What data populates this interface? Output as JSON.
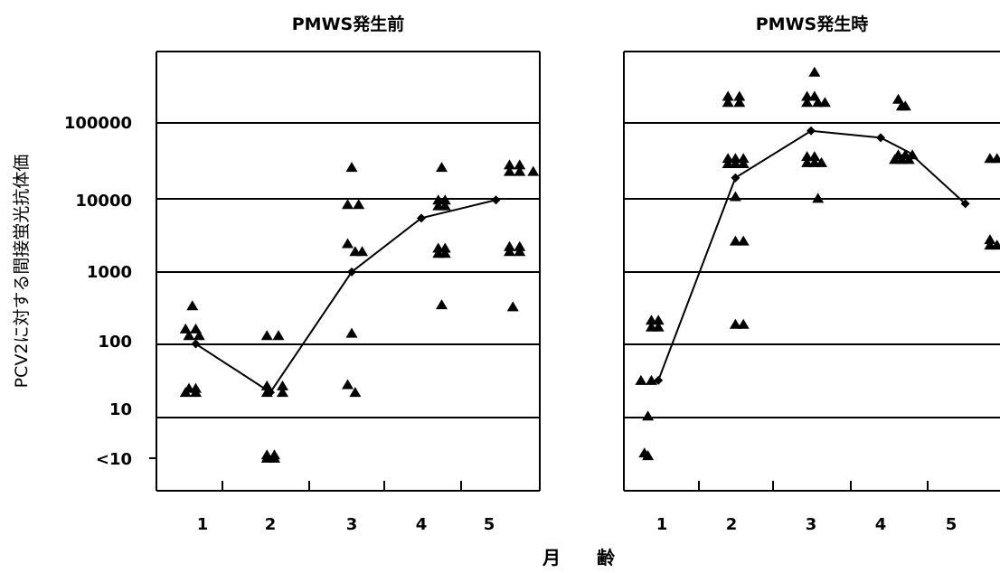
{
  "figure": {
    "ylabel": "PCV2に対する間接蛍光抗体価",
    "xlabel": "月　　齢",
    "y_ticks": [
      "<10",
      "10",
      "100",
      "1000",
      "10000",
      "100000"
    ],
    "x_ticks": [
      "1",
      "2",
      "3",
      "4",
      "5"
    ],
    "ink_color": "#000000"
  },
  "chart_data": [
    {
      "type": "scatter",
      "title": "PMWS発生前",
      "xlabel": "月　　齢",
      "ylabel": "PCV2に対する間接蛍光抗体価",
      "y_scale": "log",
      "y_ticks": [
        "<10",
        "10",
        "100",
        "1000",
        "10000",
        "100000"
      ],
      "x_ticks": [
        1,
        2,
        3,
        4,
        5
      ],
      "xlim": [
        0.4,
        5.6
      ],
      "grid": "horizontal",
      "series": [
        {
          "kind": "individual-markers",
          "marker": "triangle",
          "points": [
            [
              0.85,
              330
            ],
            [
              0.75,
              160
            ],
            [
              0.9,
              160
            ],
            [
              0.8,
              130
            ],
            [
              0.95,
              130
            ],
            [
              0.8,
              25
            ],
            [
              0.9,
              25
            ],
            [
              0.75,
              22
            ],
            [
              0.9,
              22
            ],
            [
              1.95,
              130
            ],
            [
              2.1,
              130
            ],
            [
              1.95,
              27
            ],
            [
              2.15,
              27
            ],
            [
              1.95,
              22
            ],
            [
              2.15,
              22
            ],
            [
              1.95,
              6
            ],
            [
              2.05,
              6
            ],
            [
              1.95,
              5.2
            ],
            [
              2.05,
              5.2
            ],
            [
              3.0,
              25000
            ],
            [
              2.95,
              7800
            ],
            [
              3.1,
              7800
            ],
            [
              2.95,
              2300
            ],
            [
              3.05,
              1800
            ],
            [
              3.15,
              1800
            ],
            [
              3.0,
              140
            ],
            [
              2.95,
              28
            ],
            [
              3.05,
              22
            ],
            [
              4.3,
              25000
            ],
            [
              4.25,
              9000
            ],
            [
              4.35,
              9000
            ],
            [
              4.25,
              7500
            ],
            [
              4.35,
              7500
            ],
            [
              4.25,
              2000
            ],
            [
              4.35,
              2000
            ],
            [
              4.25,
              1700
            ],
            [
              4.35,
              1700
            ],
            [
              4.3,
              340
            ],
            [
              5.3,
              27000
            ],
            [
              5.45,
              27000
            ],
            [
              5.3,
              22000
            ],
            [
              5.45,
              22000
            ],
            [
              5.65,
              22000
            ],
            [
              5.3,
              2100
            ],
            [
              5.45,
              2100
            ],
            [
              5.3,
              1800
            ],
            [
              5.45,
              1800
            ],
            [
              5.35,
              320
            ]
          ]
        },
        {
          "kind": "mean-line",
          "marker": "diamond",
          "points": [
            [
              0.9,
              100
            ],
            [
              2.0,
              22
            ],
            [
              3.0,
              950
            ],
            [
              4.0,
              5100
            ],
            [
              5.1,
              9000
            ]
          ]
        }
      ]
    },
    {
      "type": "scatter",
      "title": "PMWS発生時",
      "xlabel": "月　　齢",
      "ylabel": "PCV2に対する間接蛍光抗体価",
      "y_scale": "log",
      "y_ticks": [
        "<10",
        "10",
        "100",
        "1000",
        "10000",
        "100000"
      ],
      "x_ticks": [
        1,
        2,
        3,
        4,
        5
      ],
      "xlim": [
        0.4,
        5.6
      ],
      "grid": "horizontal",
      "series": [
        {
          "kind": "individual-markers",
          "marker": "triangle",
          "points": [
            [
              0.85,
              210
            ],
            [
              0.95,
              210
            ],
            [
              0.85,
              170
            ],
            [
              0.95,
              170
            ],
            [
              0.7,
              32
            ],
            [
              0.85,
              32
            ],
            [
              0.8,
              10.5
            ],
            [
              0.75,
              6.5
            ],
            [
              0.8,
              5.8
            ],
            [
              1.95,
              230000
            ],
            [
              2.1,
              230000
            ],
            [
              1.95,
              190000
            ],
            [
              2.1,
              190000
            ],
            [
              1.95,
              33000
            ],
            [
              2.05,
              33000
            ],
            [
              2.15,
              33000
            ],
            [
              1.95,
              28000
            ],
            [
              2.05,
              28000
            ],
            [
              2.15,
              28000
            ],
            [
              2.05,
              10000
            ],
            [
              2.05,
              2500
            ],
            [
              2.15,
              2500
            ],
            [
              2.05,
              185
            ],
            [
              2.15,
              185
            ],
            [
              3.05,
              490000
            ],
            [
              2.95,
              230000
            ],
            [
              3.05,
              230000
            ],
            [
              2.95,
              190000
            ],
            [
              3.1,
              190000
            ],
            [
              3.2,
              190000
            ],
            [
              2.95,
              35000
            ],
            [
              3.05,
              35000
            ],
            [
              2.95,
              29000
            ],
            [
              3.05,
              29000
            ],
            [
              3.15,
              29000
            ],
            [
              3.1,
              9500
            ],
            [
              4.25,
              210000
            ],
            [
              4.3,
              170000
            ],
            [
              4.35,
              170000
            ],
            [
              4.25,
              37000
            ],
            [
              4.35,
              37000
            ],
            [
              4.45,
              37000
            ],
            [
              4.2,
              32000
            ],
            [
              4.3,
              32000
            ],
            [
              4.4,
              32000
            ],
            [
              5.55,
              33000
            ],
            [
              5.65,
              33000
            ],
            [
              5.55,
              2600
            ],
            [
              5.55,
              2200
            ],
            [
              5.65,
              2200
            ]
          ]
        },
        {
          "kind": "mean-line",
          "marker": "diamond",
          "points": [
            [
              0.95,
              32
            ],
            [
              2.05,
              18000
            ],
            [
              3.0,
              78000
            ],
            [
              4.0,
              63000
            ],
            [
              4.4,
              40000
            ],
            [
              5.2,
              8000
            ]
          ]
        }
      ]
    }
  ]
}
